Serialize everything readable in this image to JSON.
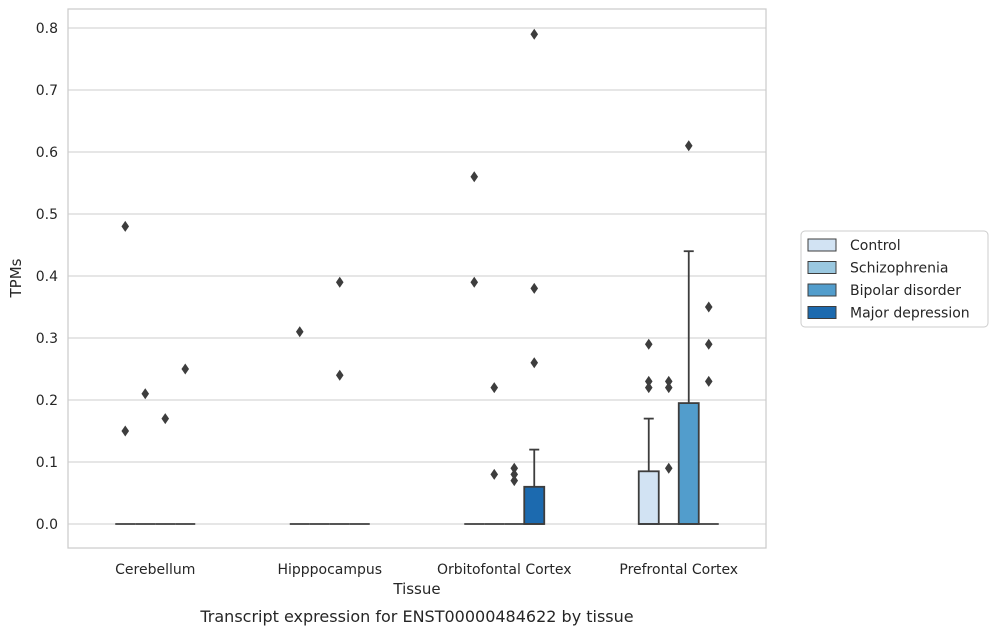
{
  "chart_data": {
    "type": "box",
    "xlabel": "Tissue",
    "ylabel": "TPMs",
    "caption": "Transcript expression for ENST00000484622 by tissue",
    "ylim": [
      -0.04,
      0.83
    ],
    "yticks": [
      0.0,
      0.1,
      0.2,
      0.3,
      0.4,
      0.5,
      0.6,
      0.7,
      0.8
    ],
    "ytick_labels": [
      "0.0",
      "0.1",
      "0.2",
      "0.3",
      "0.4",
      "0.5",
      "0.6",
      "0.7",
      "0.8"
    ],
    "grid": true,
    "legend_position": "right",
    "categories": [
      "Cerebellum",
      "Hipppocampus",
      "Orbitofontal Cortex",
      "Prefrontal Cortex"
    ],
    "series": [
      {
        "name": "Control",
        "color": "#d2e3f3",
        "boxes": [
          {
            "q1": 0,
            "median": 0,
            "q3": 0,
            "whisker_low": 0,
            "whisker_high": 0,
            "fliers": [
              0.48,
              0.15
            ]
          },
          {
            "q1": 0,
            "median": 0,
            "q3": 0,
            "whisker_low": 0,
            "whisker_high": 0,
            "fliers": [
              0.31
            ]
          },
          {
            "q1": 0,
            "median": 0,
            "q3": 0,
            "whisker_low": 0,
            "whisker_high": 0,
            "fliers": [
              0.56,
              0.39
            ]
          },
          {
            "q1": 0,
            "median": 0,
            "q3": 0.085,
            "whisker_low": 0,
            "whisker_high": 0.17,
            "fliers": [
              0.29,
              0.23,
              0.22
            ]
          }
        ]
      },
      {
        "name": "Schizophrenia",
        "color": "#9ac8e0",
        "boxes": [
          {
            "q1": 0,
            "median": 0,
            "q3": 0,
            "whisker_low": 0,
            "whisker_high": 0,
            "fliers": [
              0.21
            ]
          },
          {
            "q1": 0,
            "median": 0,
            "q3": 0,
            "whisker_low": 0,
            "whisker_high": 0,
            "fliers": []
          },
          {
            "q1": 0,
            "median": 0,
            "q3": 0,
            "whisker_low": 0,
            "whisker_high": 0,
            "fliers": [
              0.22,
              0.08
            ]
          },
          {
            "q1": 0,
            "median": 0,
            "q3": 0,
            "whisker_low": 0,
            "whisker_high": 0,
            "fliers": [
              0.23,
              0.22,
              0.09
            ]
          }
        ]
      },
      {
        "name": "Bipolar disorder",
        "color": "#529dcc",
        "boxes": [
          {
            "q1": 0,
            "median": 0,
            "q3": 0,
            "whisker_low": 0,
            "whisker_high": 0,
            "fliers": [
              0.17
            ]
          },
          {
            "q1": 0,
            "median": 0,
            "q3": 0,
            "whisker_low": 0,
            "whisker_high": 0,
            "fliers": [
              0.39,
              0.24
            ]
          },
          {
            "q1": 0,
            "median": 0,
            "q3": 0,
            "whisker_low": 0,
            "whisker_high": 0,
            "fliers": [
              0.09,
              0.08,
              0.07
            ]
          },
          {
            "q1": 0,
            "median": 0,
            "q3": 0.195,
            "whisker_low": 0,
            "whisker_high": 0.44,
            "fliers": [
              0.61
            ]
          }
        ]
      },
      {
        "name": "Major depression",
        "color": "#1c6aaf",
        "boxes": [
          {
            "q1": 0,
            "median": 0,
            "q3": 0,
            "whisker_low": 0,
            "whisker_high": 0,
            "fliers": [
              0.25
            ]
          },
          {
            "q1": 0,
            "median": 0,
            "q3": 0,
            "whisker_low": 0,
            "whisker_high": 0,
            "fliers": []
          },
          {
            "q1": 0,
            "median": 0,
            "q3": 0.06,
            "whisker_low": 0,
            "whisker_high": 0.12,
            "fliers": [
              0.79,
              0.38,
              0.26
            ]
          },
          {
            "q1": 0,
            "median": 0,
            "q3": 0,
            "whisker_low": 0,
            "whisker_high": 0,
            "fliers": [
              0.35,
              0.29,
              0.23
            ]
          }
        ]
      }
    ]
  }
}
